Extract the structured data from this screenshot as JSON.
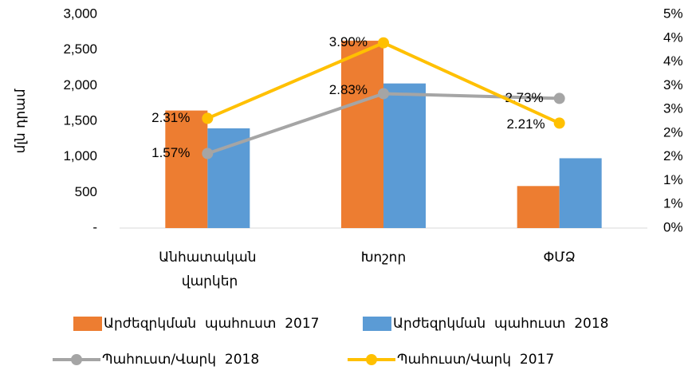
{
  "chart_data": {
    "type": "bar_line",
    "y_axis_label": "մլն դրամ",
    "categories": [
      "Անհատական վարկեր",
      "Խոշոր",
      "ՓՄՁ"
    ],
    "ylim": [
      0,
      3000
    ],
    "yticks": [
      {
        "value": 0,
        "label": "-"
      },
      500,
      {
        "value": 1000,
        "label": "1,000"
      },
      {
        "value": 1500,
        "label": "1,500"
      },
      {
        "value": 2000,
        "label": "2,000"
      },
      {
        "value": 2500,
        "label": "2,500"
      },
      {
        "value": 3000,
        "label": "3,000"
      }
    ],
    "y2lim": [
      0,
      4.5
    ],
    "y2ticks": [
      {
        "value": 0,
        "label": "0%"
      },
      {
        "value": 0.5,
        "label": "1%"
      },
      {
        "value": 1,
        "label": "1%"
      },
      {
        "value": 1.5,
        "label": "2%"
      },
      {
        "value": 2,
        "label": "2%"
      },
      {
        "value": 2.5,
        "label": "3%"
      },
      {
        "value": 3,
        "label": "3%"
      },
      {
        "value": 3.5,
        "label": "4%"
      },
      {
        "value": 4,
        "label": "4%"
      },
      {
        "value": 4.5,
        "label": "5%"
      }
    ],
    "series": [
      {
        "name": "Արժեզրկման  պահուստ  2017",
        "type": "bar",
        "color": "#ed7d31",
        "values": [
          1650,
          2630,
          590
        ]
      },
      {
        "name": "Արժեզրկման  պահուստ  2018",
        "type": "bar",
        "color": "#5b9bd5",
        "values": [
          1400,
          2030,
          980
        ]
      },
      {
        "name": "Պահուստ/Վարկ  2018",
        "type": "line",
        "axis": "y2",
        "color": "#a5a5a5",
        "values": [
          1.57,
          2.83,
          2.73
        ],
        "value_labels": [
          "1.57%",
          "2.83%",
          "2.73%"
        ]
      },
      {
        "name": "Պահուստ/Վարկ  2017",
        "type": "line",
        "axis": "y2",
        "color": "#ffc000",
        "values": [
          2.31,
          3.9,
          2.21
        ],
        "value_labels": [
          "2.31%",
          "3.90%",
          "2.21%"
        ]
      }
    ]
  }
}
